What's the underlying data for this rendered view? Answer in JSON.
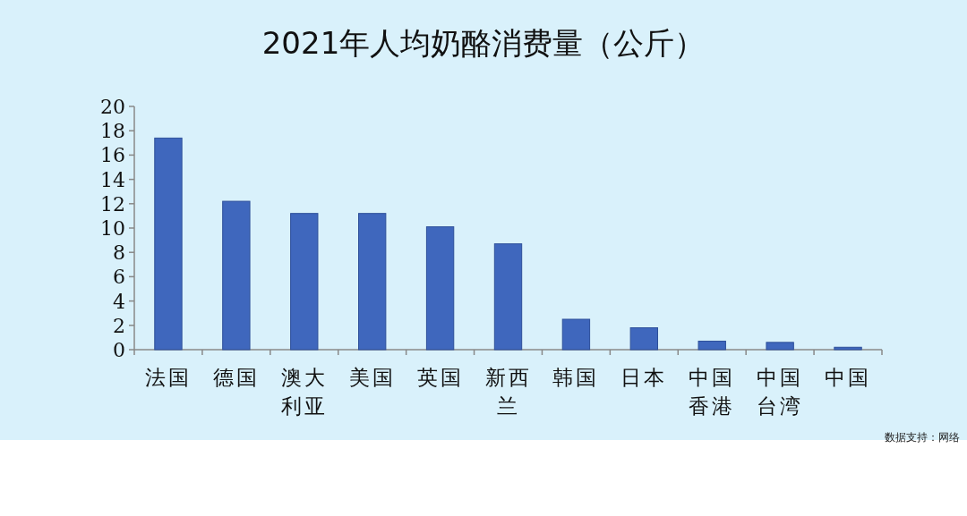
{
  "chart_data": {
    "type": "bar",
    "title": "2021年人均奶酪消费量（公斤）",
    "categories": [
      "法国",
      "德国",
      "澳大利亚",
      "美国",
      "英国",
      "新西兰",
      "韩国",
      "日本",
      "中国香港",
      "中国台湾",
      "中国"
    ],
    "values": [
      17.4,
      12.2,
      11.2,
      11.2,
      10.1,
      8.7,
      2.5,
      1.8,
      0.7,
      0.6,
      0.2
    ],
    "color": "#3f67bd",
    "ylim": [
      0,
      20
    ],
    "yticks": [
      0,
      2,
      4,
      6,
      8,
      10,
      12,
      14,
      16,
      18,
      20
    ],
    "grid": false,
    "annotations": [
      "数据支持：网络"
    ]
  }
}
